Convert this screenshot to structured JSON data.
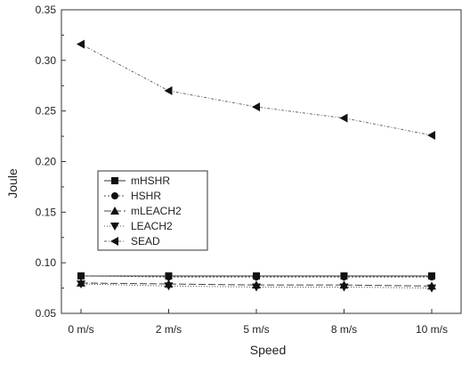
{
  "chart_data": {
    "type": "line",
    "title": "",
    "xlabel": "Speed",
    "ylabel": "Joule",
    "categories": [
      "0 m/s",
      "2 m/s",
      "5 m/s",
      "8 m/s",
      "10 m/s"
    ],
    "ylim": [
      0.05,
      0.35
    ],
    "yticks": [
      "0.05",
      "0.10",
      "0.15",
      "0.20",
      "0.25",
      "0.30",
      "0.35"
    ],
    "grid": false,
    "legend_position": "left",
    "series": [
      {
        "name": "mHSHR",
        "marker": "square",
        "dash": "",
        "color": "#333333",
        "values": [
          0.087,
          0.087,
          0.087,
          0.087,
          0.087
        ]
      },
      {
        "name": "HSHR",
        "marker": "circle",
        "dash": "2 2",
        "color": "#555555",
        "values": [
          0.087,
          0.086,
          0.086,
          0.086,
          0.086
        ]
      },
      {
        "name": "mLEACH2",
        "marker": "triangle-up",
        "dash": "8 3",
        "color": "#444444",
        "values": [
          0.08,
          0.079,
          0.078,
          0.078,
          0.077
        ]
      },
      {
        "name": "LEACH2",
        "marker": "triangle-down",
        "dash": "1 2",
        "color": "#555555",
        "values": [
          0.079,
          0.077,
          0.076,
          0.076,
          0.075
        ]
      },
      {
        "name": "SEAD",
        "marker": "triangle-left",
        "dash": "3 2 1 2",
        "color": "#666666",
        "values": [
          0.316,
          0.27,
          0.254,
          0.243,
          0.226
        ]
      }
    ]
  }
}
